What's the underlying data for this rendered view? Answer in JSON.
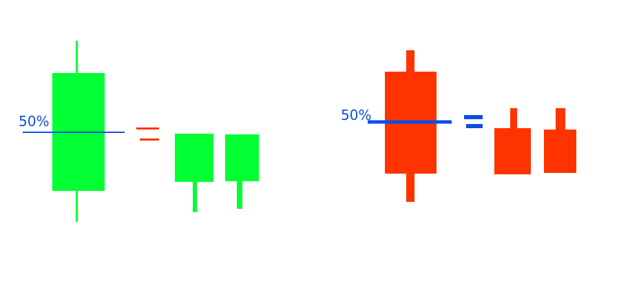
{
  "colors": {
    "bullish": "#00ff33",
    "bearish": "#ff3300",
    "midline": "#0a4ee6",
    "equals_left": "#ff3300",
    "equals_right": "#0a4ee6"
  },
  "left_group": {
    "label": "50%",
    "type": "bullish",
    "equals_icon": "equals-sign-icon"
  },
  "right_group": {
    "label": "50%",
    "type": "bearish",
    "equals_icon": "equals-sign-icon"
  }
}
